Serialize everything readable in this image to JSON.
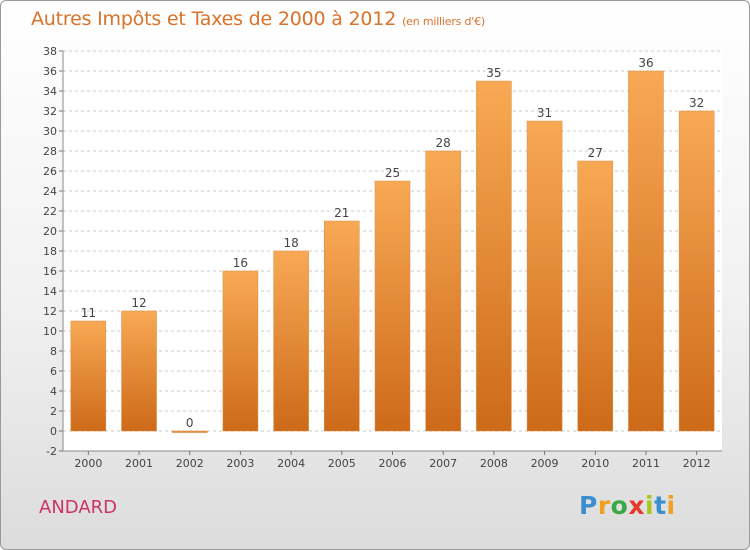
{
  "header": {
    "title": "Autres Impôts et Taxes de 2000 à 2012",
    "subtitle": "(en milliers d'€)"
  },
  "location_label": "ANDARD",
  "logo": {
    "text": "Proxiti",
    "letters": [
      "P",
      "r",
      "o",
      "x",
      "i",
      "t",
      "i"
    ]
  },
  "colors": {
    "bar_light": "#f7a552",
    "bar_dark": "#cd6a1a",
    "title": "#d9722a",
    "place": "#cc3366"
  },
  "chart_data": {
    "type": "bar",
    "title": "Autres Impôts et Taxes de 2000 à 2012",
    "subtitle": "(en milliers d'€)",
    "xlabel": "",
    "ylabel": "",
    "categories": [
      "2000",
      "2001",
      "2002",
      "2003",
      "2004",
      "2005",
      "2006",
      "2007",
      "2008",
      "2009",
      "2010",
      "2011",
      "2012"
    ],
    "values": [
      11,
      12,
      0,
      16,
      18,
      21,
      25,
      28,
      35,
      31,
      27,
      36,
      32
    ],
    "ylim": [
      -2,
      38
    ],
    "yticks": [
      -2,
      0,
      2,
      4,
      6,
      8,
      10,
      12,
      14,
      16,
      18,
      20,
      22,
      24,
      26,
      28,
      30,
      32,
      34,
      36,
      38
    ],
    "grid": "horizontal dashed",
    "data_labels": true,
    "legend": "none"
  }
}
